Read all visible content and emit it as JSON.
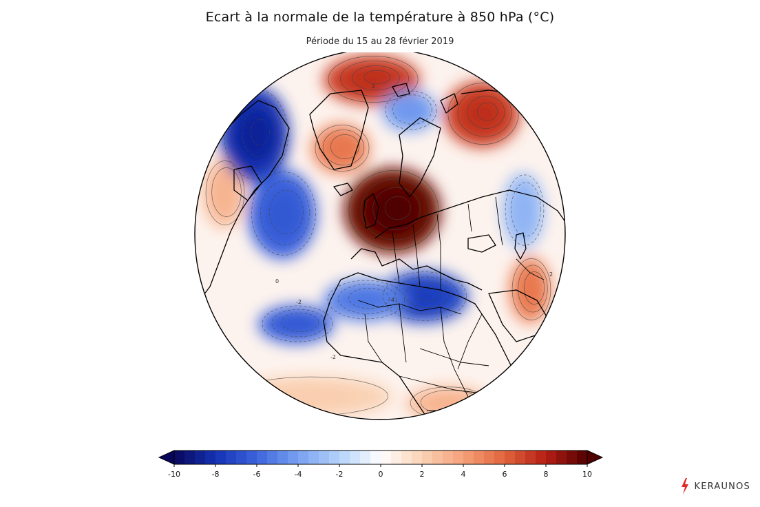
{
  "header": {
    "title": "Ecart à la normale de la température à 850 hPa (°C)",
    "subtitle": "Période du 15 au 28 février 2019"
  },
  "map": {
    "projection": "orthographic",
    "variable": "temperature anomaly at 850 hPa",
    "anomalies": [
      {
        "region": "Europe centrale / Allemagne",
        "value": 9.5
      },
      {
        "region": "Sibérie / Oural",
        "value": 7
      },
      {
        "region": "Groenland / Arctique",
        "value": 7
      },
      {
        "region": "Groenland sud",
        "value": 5
      },
      {
        "region": "Golfe Persique / Arabie",
        "value": 5
      },
      {
        "region": "Amérique du Nord est",
        "value": 3
      },
      {
        "region": "Afrique australe",
        "value": 3
      },
      {
        "region": "Atlantique sud",
        "value": 2
      },
      {
        "region": "Arctique canadien",
        "value": -8
      },
      {
        "region": "Atlantique ouest (Bermudes)",
        "value": -6
      },
      {
        "region": "Libye / Égypte",
        "value": -7
      },
      {
        "region": "Afrique de l'Ouest (Mali)",
        "value": -5
      },
      {
        "region": "Atlantique tropical",
        "value": -6
      },
      {
        "region": "Mer Arctique (Barents)",
        "value": -4
      },
      {
        "region": "Asie centrale",
        "value": -3
      }
    ],
    "contour_labels": [
      "2",
      "-2",
      "-4",
      "2",
      "0",
      "-2"
    ]
  },
  "colorbar": {
    "min": -10,
    "max": 10,
    "ticks": [
      "-10",
      "-8",
      "-6",
      "-4",
      "-2",
      "0",
      "2",
      "4",
      "6",
      "8",
      "10"
    ],
    "extend": "both",
    "colors": [
      "#08065a",
      "#1432b4",
      "#3c64dc",
      "#78a0f0",
      "#b4d2fa",
      "#ffffff",
      "#fad2b4",
      "#f5a078",
      "#e1643c",
      "#b41e14",
      "#500000"
    ]
  },
  "brand": {
    "name": "KERAUNOS",
    "icon": "lightning-icon",
    "icon_color": "#e02a2a"
  }
}
